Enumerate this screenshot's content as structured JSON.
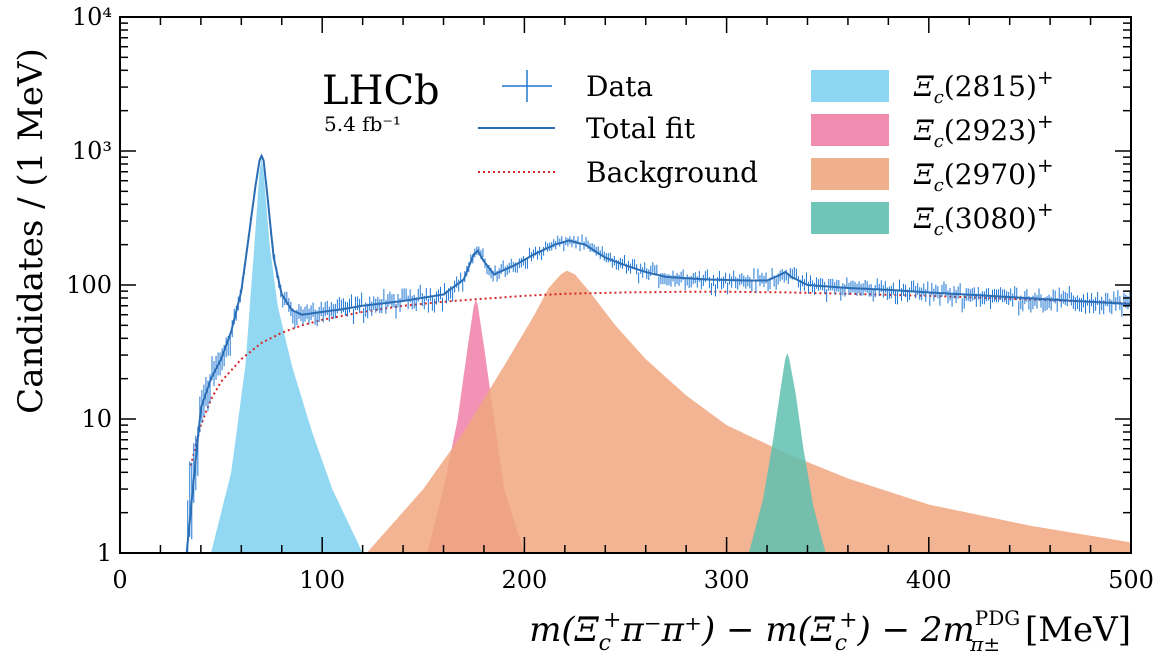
{
  "chart_data": {
    "type": "line",
    "experiment_label": "LHCb",
    "luminosity_label": "5.4 fb⁻¹",
    "xlabel": "m(Ξ_c⁺ π⁻ π⁺) − m(Ξ_c⁺) − 2m_π±^PDG [MeV]",
    "xlabel_parts": {
      "main": "m(Ξ",
      "c1_sub": "c",
      "c1_sup": "+",
      "pi_part": "π⁻π⁺) − m(Ξ",
      "c2_sub": "c",
      "c2_sup": "+",
      "end_part": ") − 2m",
      "pdg_sup": "PDG",
      "pi_sub": "π±",
      "unit": " [MeV]"
    },
    "ylabel": "Candidates / (1 MeV)",
    "xlim": [
      0,
      500
    ],
    "ylim": [
      1,
      10000
    ],
    "y_scale": "log",
    "x_ticks": [
      0,
      100,
      200,
      300,
      400,
      500
    ],
    "x_tick_labels": [
      "0",
      "100",
      "200",
      "300",
      "400",
      "500"
    ],
    "y_ticks": [
      1,
      10,
      100,
      1000,
      10000
    ],
    "y_tick_labels": [
      "1",
      "10",
      "100",
      "10³",
      "10⁴"
    ],
    "legend_position": "top",
    "legend": {
      "data": "Data",
      "total_fit": "Total fit",
      "background": "Background",
      "components": [
        {
          "name": "Ξ_c(2815)⁺",
          "base": "Ξ",
          "sub": "c",
          "mass": "(2815)",
          "sup": "+",
          "color": "#7fd1f0"
        },
        {
          "name": "Ξ_c(2923)⁺",
          "base": "Ξ",
          "sub": "c",
          "mass": "(2923)",
          "sup": "+",
          "color": "#f07fa8"
        },
        {
          "name": "Ξ_c(2970)⁺",
          "base": "Ξ",
          "sub": "c",
          "mass": "(2970)",
          "sup": "+",
          "color": "#f0a77f"
        },
        {
          "name": "Ξ_c(3080)⁺",
          "base": "Ξ",
          "sub": "c",
          "mass": "(3080)",
          "sup": "+",
          "color": "#5fc0b0"
        }
      ]
    },
    "colors": {
      "data": "#1f77d4",
      "total_fit": "#2a6db5",
      "background": "#d62728"
    },
    "series": [
      {
        "name": "Background",
        "style": "dotted",
        "x": [
          35,
          40,
          45,
          50,
          60,
          70,
          80,
          90,
          100,
          120,
          140,
          160,
          180,
          200,
          220,
          250,
          280,
          300,
          330,
          360,
          400,
          450,
          500
        ],
        "y": [
          4.5,
          9,
          14,
          19,
          28,
          37,
          44,
          50,
          55,
          63,
          70,
          75,
          79,
          83,
          86,
          88,
          89,
          89,
          88,
          86,
          83,
          78,
          73
        ]
      },
      {
        "name": "Total fit",
        "style": "solid",
        "x": [
          33,
          36,
          40,
          45,
          50,
          55,
          60,
          64,
          67,
          69,
          70,
          71,
          73,
          76,
          80,
          85,
          90,
          100,
          110,
          120,
          140,
          160,
          170,
          175,
          177,
          180,
          185,
          195,
          205,
          215,
          222,
          230,
          240,
          250,
          260,
          270,
          290,
          310,
          320,
          326,
          329,
          332,
          340,
          360,
          380,
          400,
          430,
          460,
          500
        ],
        "y": [
          1,
          3,
          12,
          20,
          28,
          45,
          90,
          250,
          550,
          850,
          920,
          850,
          450,
          160,
          85,
          65,
          60,
          63,
          66,
          70,
          76,
          85,
          110,
          170,
          180,
          150,
          120,
          140,
          170,
          200,
          215,
          200,
          160,
          140,
          125,
          115,
          110,
          108,
          108,
          118,
          125,
          115,
          100,
          95,
          92,
          88,
          83,
          78,
          72
        ]
      }
    ],
    "components": [
      {
        "name": "Ξ_c(2815)⁺",
        "x": [
          45,
          55,
          62,
          66,
          69,
          70,
          71,
          74,
          78,
          85,
          95,
          105,
          120
        ],
        "y": [
          1,
          4,
          25,
          160,
          700,
          880,
          700,
          200,
          70,
          25,
          8,
          3,
          1
        ]
      },
      {
        "name": "Ξ_c(2923)⁺",
        "x": [
          152,
          160,
          167,
          172,
          175,
          176,
          177,
          180,
          185,
          190,
          200
        ],
        "y": [
          1,
          3,
          10,
          35,
          70,
          78,
          70,
          35,
          10,
          3,
          1
        ]
      },
      {
        "name": "Ξ_c(2970)⁺",
        "x": [
          122,
          150,
          170,
          190,
          205,
          212,
          218,
          221,
          225,
          232,
          245,
          260,
          280,
          300,
          330,
          360,
          400,
          450,
          500
        ],
        "y": [
          1,
          3,
          8,
          25,
          60,
          95,
          120,
          128,
          120,
          90,
          50,
          28,
          15,
          9,
          5.5,
          3.6,
          2.3,
          1.6,
          1.2
        ]
      },
      {
        "name": "Ξ_c(3080)⁺",
        "x": [
          311,
          318,
          323,
          327,
          329,
          330,
          331,
          334,
          338,
          343,
          349
        ],
        "y": [
          1,
          2.5,
          7,
          18,
          28,
          31,
          28,
          16,
          6,
          2.2,
          1
        ]
      }
    ]
  }
}
